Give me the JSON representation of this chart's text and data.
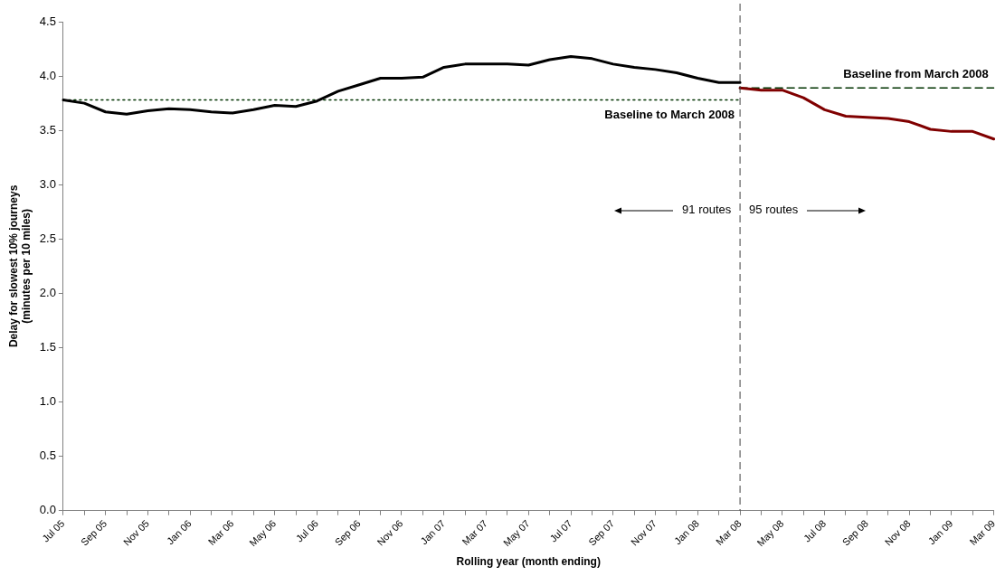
{
  "chart_data": {
    "type": "line",
    "xlabel": "Rolling year (month ending)",
    "ylabel": "Delay for slowest 10% journeys (minutes per 10 miles)",
    "categories": [
      "Jul 05",
      null,
      "Sep 05",
      null,
      "Nov 05",
      null,
      "Jan 06",
      null,
      "Mar 06",
      null,
      "May 06",
      null,
      "Jul 06",
      null,
      "Sep 06",
      null,
      "Nov 06",
      null,
      "Jan 07",
      null,
      "Mar 07",
      null,
      "May 07",
      null,
      "Jul 07",
      null,
      "Sep 07",
      null,
      "Nov 07",
      null,
      "Jan 08",
      null,
      "Mar 08",
      null,
      "May 08",
      null,
      "Jul 08",
      null,
      "Sep 08",
      null,
      "Nov 08",
      null,
      "Jan 09",
      null,
      "Mar 09"
    ],
    "series": [
      {
        "color": "#000000",
        "values": [
          3.78,
          3.75,
          3.67,
          3.65,
          3.68,
          3.7,
          3.69,
          3.67,
          3.66,
          3.69,
          3.73,
          3.72,
          3.77,
          3.86,
          3.92,
          3.98,
          3.98,
          3.99,
          4.08,
          4.11,
          4.11,
          4.11,
          4.1,
          4.15,
          4.18,
          4.16,
          4.11,
          4.08,
          4.06,
          4.03,
          3.98,
          3.94,
          3.94,
          null,
          null,
          null,
          null,
          null,
          null,
          null,
          null,
          null,
          null,
          null,
          null
        ]
      },
      {
        "color": "#800000",
        "values": [
          null,
          null,
          null,
          null,
          null,
          null,
          null,
          null,
          null,
          null,
          null,
          null,
          null,
          null,
          null,
          null,
          null,
          null,
          null,
          null,
          null,
          null,
          null,
          null,
          null,
          null,
          null,
          null,
          null,
          null,
          null,
          null,
          3.89,
          3.87,
          3.87,
          3.8,
          3.69,
          3.63,
          3.62,
          3.61,
          3.58,
          3.51,
          3.49,
          3.49,
          3.42
        ]
      },
      {
        "name": "Baseline to March 2008",
        "color": "#003300",
        "line_style": "dotted",
        "values": [
          3.78,
          3.78,
          3.78,
          3.78,
          3.78,
          3.78,
          3.78,
          3.78,
          3.78,
          3.78,
          3.78,
          3.78,
          3.78,
          3.78,
          3.78,
          3.78,
          3.78,
          3.78,
          3.78,
          3.78,
          3.78,
          3.78,
          3.78,
          3.78,
          3.78,
          3.78,
          3.78,
          3.78,
          3.78,
          3.78,
          3.78,
          3.78,
          3.78,
          null,
          null,
          null,
          null,
          null,
          null,
          null,
          null,
          null,
          null,
          null,
          null
        ]
      },
      {
        "name": "Baseline from March 2008",
        "color": "#003300",
        "line_style": "dashed",
        "values": [
          null,
          null,
          null,
          null,
          null,
          null,
          null,
          null,
          null,
          null,
          null,
          null,
          null,
          null,
          null,
          null,
          null,
          null,
          null,
          null,
          null,
          null,
          null,
          null,
          null,
          null,
          null,
          null,
          null,
          null,
          null,
          null,
          3.89,
          3.89,
          3.89,
          3.89,
          3.89,
          3.89,
          3.89,
          3.89,
          3.89,
          3.89,
          3.89,
          3.89,
          3.89
        ]
      }
    ],
    "ylim": [
      0,
      4.5
    ],
    "yticks": [
      {
        "value": 0,
        "label": "0.0"
      },
      {
        "value": 0.5,
        "label": "0.5"
      },
      {
        "value": 1,
        "label": "1.0"
      },
      {
        "value": 1.5,
        "label": "1.5"
      },
      {
        "value": 2,
        "label": "2.0"
      },
      {
        "value": 2.5,
        "label": "2.5"
      },
      {
        "value": 3,
        "label": "3.0"
      },
      {
        "value": 3.5,
        "label": "3.5"
      },
      {
        "value": 4,
        "label": "4.0"
      },
      {
        "value": 4.5,
        "label": "4.5"
      }
    ],
    "ref_lines": [
      {
        "axis": "x",
        "value": "Mar 08",
        "color": "#404040",
        "line_style": "dashed"
      }
    ],
    "annotations": [
      "91 routes",
      "95 routes"
    ],
    "grid": false,
    "legend": false,
    "marker": "none"
  }
}
